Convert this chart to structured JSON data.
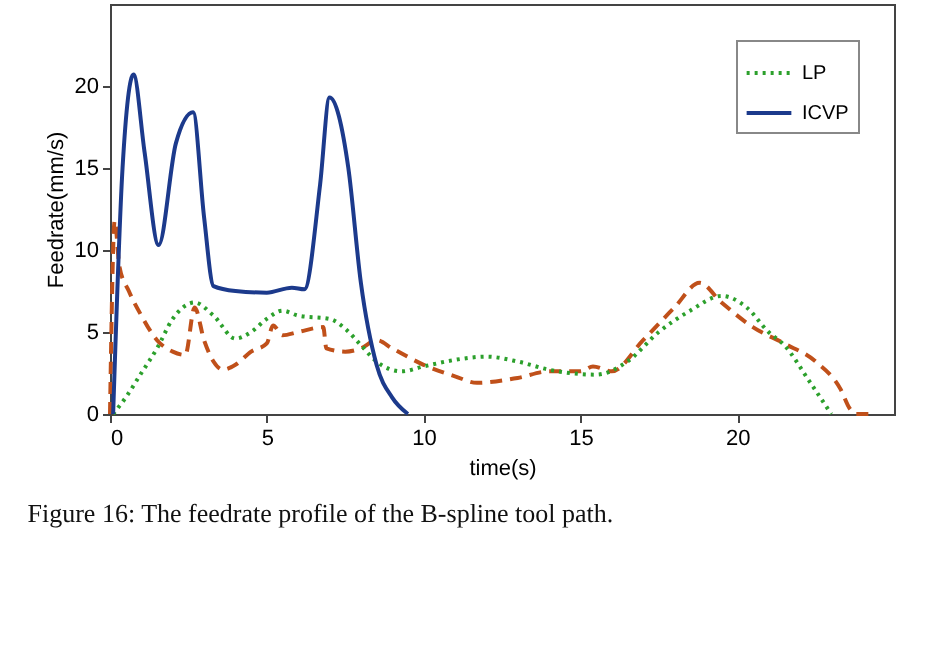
{
  "chart_data": {
    "type": "line",
    "xlabel": "time(s)",
    "ylabel": "Feedrate(mm/s)",
    "xlim": [
      0,
      25
    ],
    "ylim": [
      0,
      25
    ],
    "xticks": [
      0,
      5,
      10,
      15,
      20
    ],
    "yticks": [
      0,
      5,
      10,
      15,
      20
    ],
    "grid": false,
    "legend": "top right",
    "series": [
      {
        "color": "#c0501a",
        "line_style": "dashed",
        "x": [
          0,
          0.15,
          0.3,
          0.6,
          1.0,
          1.5,
          2.0,
          2.4,
          2.7,
          3.0,
          3.3,
          3.6,
          4.0,
          4.5,
          5.0,
          5.2,
          5.5,
          6.0,
          6.8,
          6.9,
          7.5,
          8.0,
          8.5,
          9.0,
          10.0,
          11.0,
          11.7,
          13.0,
          14.0,
          15.0,
          15.4,
          16.0,
          17.0,
          18.0,
          18.8,
          19.5,
          20.5,
          21.5,
          22.5,
          23.3,
          23.6,
          23.8,
          24.2
        ],
        "values": [
          0,
          11.8,
          9,
          7.5,
          6,
          4.5,
          3.8,
          3.6,
          6.5,
          4.5,
          3.2,
          2.7,
          3,
          3.8,
          4.3,
          5.4,
          4.8,
          5.0,
          5.3,
          4.0,
          3.8,
          4.0,
          4.5,
          4.0,
          3.0,
          2.3,
          1.9,
          2.2,
          2.6,
          2.6,
          2.9,
          2.6,
          4.5,
          6.5,
          8.0,
          6.8,
          5.3,
          4.3,
          3.2,
          1.5,
          0.3,
          0,
          0
        ]
      },
      {
        "name": "LP",
        "color": "#2ca02c",
        "line_style": "dotted",
        "x": [
          0.1,
          0.5,
          1,
          1.5,
          2,
          2.7,
          3.3,
          4,
          4.5,
          5,
          5.5,
          6,
          7,
          7.5,
          8,
          8.5,
          9.3,
          10,
          11,
          12,
          13,
          14,
          15.5,
          16.5,
          17.5,
          18.5,
          19.5,
          20.3,
          21,
          21.5,
          22.3,
          23.0
        ],
        "values": [
          0,
          1,
          2.5,
          4,
          5.8,
          6.8,
          6,
          4.6,
          5,
          5.8,
          6.3,
          6,
          5.8,
          5.2,
          4.2,
          3.2,
          2.6,
          2.9,
          3.3,
          3.5,
          3.2,
          2.7,
          2.4,
          3.2,
          5,
          6.3,
          7.2,
          6.5,
          5,
          4.2,
          2,
          0
        ]
      },
      {
        "name": "ICVP",
        "color": "#1c3a8c",
        "line_style": "solid",
        "x": [
          0.1,
          0.4,
          0.75,
          1.1,
          1.55,
          2.1,
          2.65,
          3.0,
          3.3,
          4,
          5,
          5.8,
          6.2,
          6.7,
          7.0,
          7.6,
          8,
          8.5,
          9,
          9.5
        ],
        "values": [
          0,
          15,
          20.7,
          16,
          10.3,
          16.5,
          18.4,
          12,
          7.8,
          7.5,
          7.4,
          7.7,
          7.6,
          14,
          19.3,
          15,
          8,
          3,
          1,
          0
        ]
      }
    ],
    "annotations": [
      "Figure 16: The feedrate profile of the B-spline tool path."
    ]
  }
}
